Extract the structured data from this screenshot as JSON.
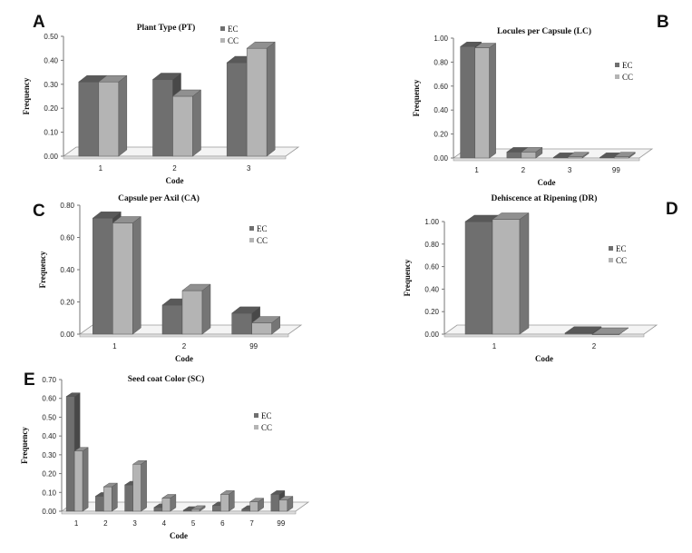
{
  "colors": {
    "EC": "#6f6f6f",
    "CC": "#b4b4b4",
    "floor": "#f4f4f4",
    "axis": "#777777"
  },
  "chart_data": [
    {
      "id": "A",
      "letter": "A",
      "type": "bar",
      "title": "Plant Type (PT)",
      "xlabel": "Code",
      "ylabel": "Frequency",
      "categories": [
        "1",
        "2",
        "3"
      ],
      "ylim": [
        0,
        0.5
      ],
      "yticks": [
        "0.00",
        "0.10",
        "0.20",
        "0.30",
        "0.40",
        "0.50"
      ],
      "series": [
        {
          "name": "EC",
          "values": [
            0.31,
            0.32,
            0.39
          ]
        },
        {
          "name": "CC",
          "values": [
            0.31,
            0.25,
            0.45
          ]
        }
      ],
      "legend_position": "top-right"
    },
    {
      "id": "B",
      "letter": "B",
      "type": "bar",
      "title": "Locules per Capsule (LC)",
      "xlabel": "Code",
      "ylabel": "Frequency",
      "categories": [
        "1",
        "2",
        "3",
        "99"
      ],
      "ylim": [
        0,
        1.0
      ],
      "yticks": [
        "0.00",
        "0.20",
        "0.40",
        "0.60",
        "0.80",
        "1.00"
      ],
      "series": [
        {
          "name": "EC",
          "values": [
            0.93,
            0.05,
            0.005,
            0.005
          ]
        },
        {
          "name": "CC",
          "values": [
            0.92,
            0.05,
            0.01,
            0.01
          ]
        }
      ],
      "legend_position": "right"
    },
    {
      "id": "C",
      "letter": "C",
      "type": "bar",
      "title": "Capsule per Axil (CA)",
      "xlabel": "Code",
      "ylabel": "Frequency",
      "categories": [
        "1",
        "2",
        "99"
      ],
      "ylim": [
        0,
        0.8
      ],
      "yticks": [
        "0.00",
        "0.20",
        "0.40",
        "0.60",
        "0.80"
      ],
      "series": [
        {
          "name": "EC",
          "values": [
            0.72,
            0.18,
            0.13
          ]
        },
        {
          "name": "CC",
          "values": [
            0.69,
            0.27,
            0.07
          ]
        }
      ],
      "legend_position": "right"
    },
    {
      "id": "D",
      "letter": "D",
      "type": "bar",
      "title": "Dehiscence at Ripening (DR)",
      "xlabel": "Code",
      "ylabel": "Frequency",
      "categories": [
        "1",
        "2"
      ],
      "ylim": [
        0,
        1.0
      ],
      "yticks": [
        "0.00",
        "0.20",
        "0.40",
        "0.60",
        "0.80",
        "1.00"
      ],
      "series": [
        {
          "name": "EC",
          "values": [
            1.0,
            0.01
          ]
        },
        {
          "name": "CC",
          "values": [
            1.02,
            0.0
          ]
        }
      ],
      "legend_position": "right"
    },
    {
      "id": "E",
      "letter": "E",
      "type": "bar",
      "title": "Seed coat Color (SC)",
      "xlabel": "Code",
      "ylabel": "Frequency",
      "categories": [
        "1",
        "2",
        "3",
        "4",
        "5",
        "6",
        "7",
        "99"
      ],
      "ylim": [
        0,
        0.7
      ],
      "yticks": [
        "0.00",
        "0.10",
        "0.20",
        "0.30",
        "0.40",
        "0.50",
        "0.60",
        "0.70"
      ],
      "series": [
        {
          "name": "EC",
          "values": [
            0.61,
            0.08,
            0.14,
            0.02,
            0.005,
            0.03,
            0.01,
            0.09
          ]
        },
        {
          "name": "CC",
          "values": [
            0.32,
            0.13,
            0.25,
            0.07,
            0.01,
            0.09,
            0.05,
            0.06
          ]
        }
      ],
      "legend_position": "right"
    }
  ]
}
